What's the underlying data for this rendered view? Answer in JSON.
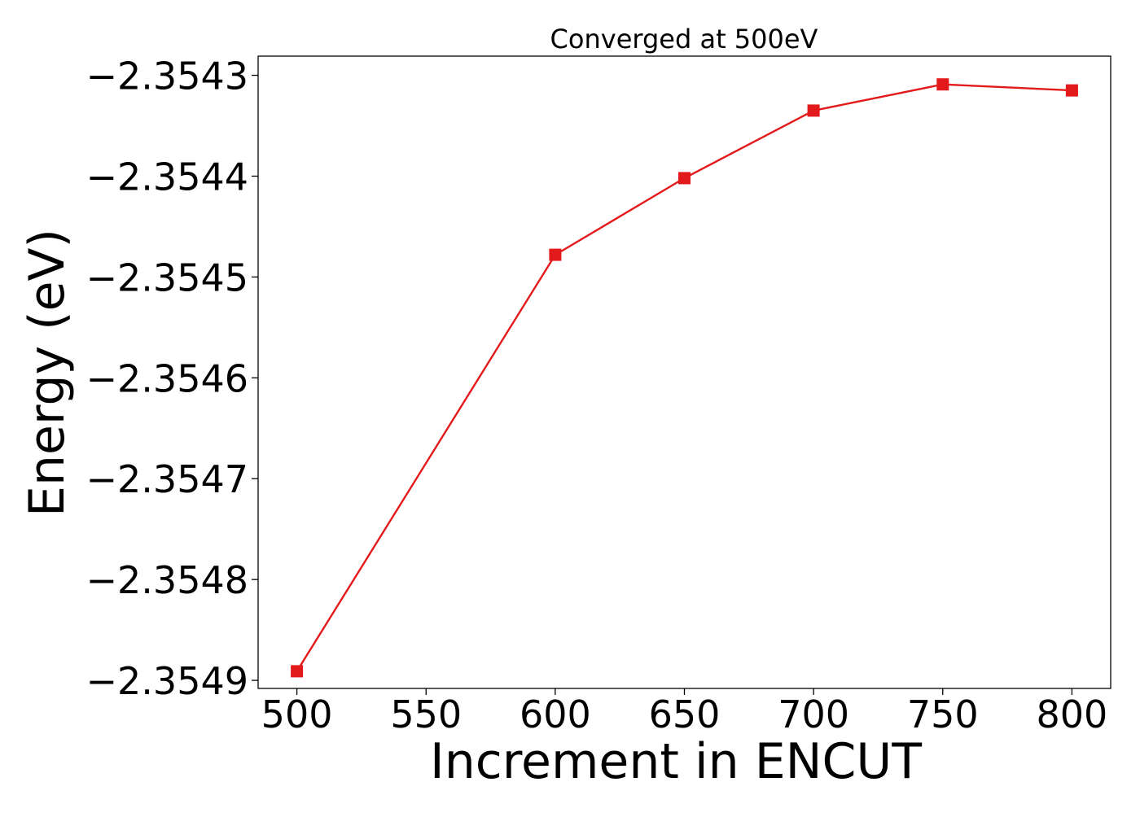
{
  "chart_data": {
    "type": "line",
    "title": "Converged at 500eV",
    "xlabel": "Increment in ENCUT",
    "ylabel": "Energy (eV)",
    "x": [
      500,
      600,
      650,
      700,
      750,
      800
    ],
    "series": [
      {
        "color": "#e31a1c",
        "marker": "square",
        "values": [
          -2.354891,
          -2.354478,
          -2.354402,
          -2.354335,
          -2.354309,
          -2.354315
        ]
      }
    ],
    "xticks": [
      500,
      550,
      600,
      650,
      700,
      750,
      800
    ],
    "xtick_labels": [
      "500",
      "550",
      "600",
      "650",
      "700",
      "750",
      "800"
    ],
    "yticks": [
      -2.3543,
      -2.3544,
      -2.3545,
      -2.3546,
      -2.3547,
      -2.3548,
      -2.3549
    ],
    "ytick_labels": [
      "−2.3543",
      "−2.3544",
      "−2.3545",
      "−2.3546",
      "−2.3547",
      "−2.3548",
      "−2.3549"
    ],
    "xlim": [
      485,
      815
    ],
    "ylim": [
      -2.354908,
      -2.354281
    ],
    "grid": false,
    "legend": "none"
  }
}
